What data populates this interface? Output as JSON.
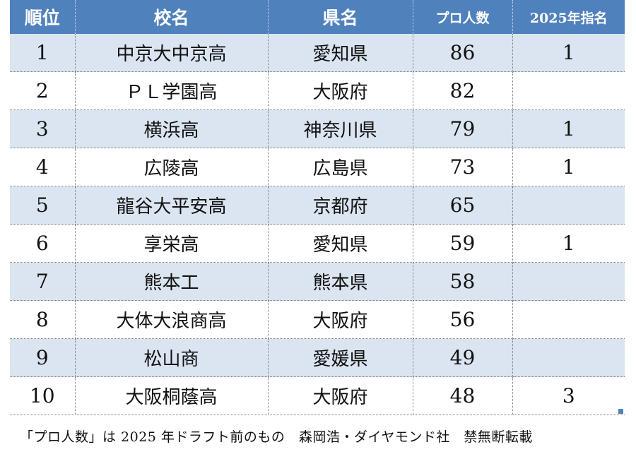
{
  "table": {
    "headers": [
      "順位",
      "校名",
      "県名",
      "プロ人数",
      "2025年指名"
    ],
    "rows": [
      {
        "rank": "1",
        "school": "中京大中京高",
        "prefecture": "愛知県",
        "pros": "86",
        "drafted_2025": "1"
      },
      {
        "rank": "2",
        "school": "ＰＬ学園高",
        "prefecture": "大阪府",
        "pros": "82",
        "drafted_2025": ""
      },
      {
        "rank": "3",
        "school": "横浜高",
        "prefecture": "神奈川県",
        "pros": "79",
        "drafted_2025": "1"
      },
      {
        "rank": "4",
        "school": "広陵高",
        "prefecture": "広島県",
        "pros": "73",
        "drafted_2025": "1"
      },
      {
        "rank": "5",
        "school": "龍谷大平安高",
        "prefecture": "京都府",
        "pros": "65",
        "drafted_2025": ""
      },
      {
        "rank": "6",
        "school": "享栄高",
        "prefecture": "愛知県",
        "pros": "59",
        "drafted_2025": "1"
      },
      {
        "rank": "7",
        "school": "熊本工",
        "prefecture": "熊本県",
        "pros": "58",
        "drafted_2025": ""
      },
      {
        "rank": "8",
        "school": "大体大浪商高",
        "prefecture": "大阪府",
        "pros": "56",
        "drafted_2025": ""
      },
      {
        "rank": "9",
        "school": "松山商",
        "prefecture": "愛媛県",
        "pros": "49",
        "drafted_2025": ""
      },
      {
        "rank": "10",
        "school": "大阪桐蔭高",
        "prefecture": "大阪府",
        "pros": "48",
        "drafted_2025": "3"
      }
    ]
  },
  "footer": "「プロ人数」は 2025 年ドラフト前のもの　森岡浩・ダイヤモンド社　禁無断転載",
  "colors": {
    "header_bg": "#4f81bd",
    "alt_row_bg": "#dbe5f1"
  }
}
